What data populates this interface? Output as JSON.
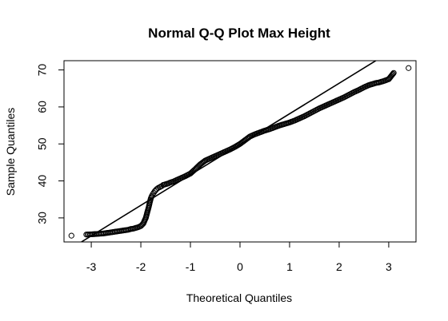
{
  "chart_data": {
    "type": "scatter",
    "title": "Normal Q-Q Plot Max Height",
    "xlabel": "Theoretical Quantiles",
    "ylabel": "Sample Quantiles",
    "xlim": [
      -3.55,
      3.55
    ],
    "ylim": [
      23.5,
      72.5
    ],
    "x_ticks": [
      -3,
      -2,
      -1,
      0,
      1,
      2,
      3
    ],
    "y_ticks": [
      30,
      40,
      50,
      60,
      70
    ],
    "grid": false,
    "legend": "none",
    "marker": "open-circle",
    "colors": {
      "points": "#000000",
      "line": "#000000",
      "frame": "#000000"
    },
    "reference_line": {
      "x": [
        -3.2,
        2.8
      ],
      "y": [
        23.5,
        73.0
      ]
    },
    "series": [
      {
        "x": [
          -3.4,
          -3.1,
          -2.95,
          -2.85,
          -2.75,
          -2.7,
          -2.65,
          -2.6,
          -2.55,
          -2.5,
          -2.45,
          -2.4,
          -2.35,
          -2.3,
          -2.25,
          -2.2,
          -2.15,
          -2.1,
          -2.05,
          -2.0,
          -1.95,
          -1.9,
          -1.88,
          -1.86,
          -1.84,
          -1.82,
          -1.8,
          -1.78,
          -1.76,
          -1.74,
          -1.72,
          -1.7,
          -1.68,
          -1.65,
          -1.62,
          -1.58,
          -1.55,
          -1.5,
          -1.45,
          -1.4,
          -1.35,
          -1.3,
          -1.2,
          -1.1,
          -1.0,
          -0.9,
          -0.8,
          -0.7,
          -0.6,
          -0.5,
          -0.4,
          -0.3,
          -0.2,
          -0.1,
          0.0,
          0.1,
          0.2,
          0.3,
          0.4,
          0.5,
          0.6,
          0.7,
          0.8,
          0.9,
          1.0,
          1.1,
          1.2,
          1.3,
          1.4,
          1.5,
          1.6,
          1.7,
          1.8,
          1.9,
          2.0,
          2.1,
          2.2,
          2.3,
          2.4,
          2.5,
          2.55,
          2.6,
          2.65,
          2.7,
          2.75,
          2.8,
          2.9,
          3.0,
          3.1,
          3.4
        ],
        "y": [
          25.2,
          25.5,
          25.6,
          25.7,
          25.8,
          25.9,
          26.0,
          26.1,
          26.2,
          26.3,
          26.4,
          26.5,
          26.6,
          26.7,
          26.8,
          27.0,
          27.1,
          27.3,
          27.5,
          27.8,
          28.5,
          30.0,
          31.0,
          32.0,
          33.0,
          34.2,
          35.2,
          35.9,
          36.4,
          36.8,
          37.2,
          37.5,
          37.8,
          38.1,
          38.3,
          38.6,
          38.9,
          39.1,
          39.3,
          39.6,
          39.8,
          40.1,
          40.7,
          41.3,
          42.0,
          43.2,
          44.5,
          45.5,
          46.1,
          46.7,
          47.3,
          47.9,
          48.5,
          49.2,
          50.0,
          51.0,
          52.0,
          52.6,
          53.1,
          53.6,
          54.0,
          54.5,
          55.0,
          55.4,
          55.8,
          56.3,
          56.9,
          57.5,
          58.2,
          58.9,
          59.6,
          60.2,
          60.8,
          61.4,
          62.0,
          62.6,
          63.3,
          64.0,
          64.6,
          65.3,
          65.6,
          65.9,
          66.1,
          66.3,
          66.5,
          66.6,
          67.0,
          67.5,
          69.2,
          70.5
        ]
      }
    ]
  }
}
